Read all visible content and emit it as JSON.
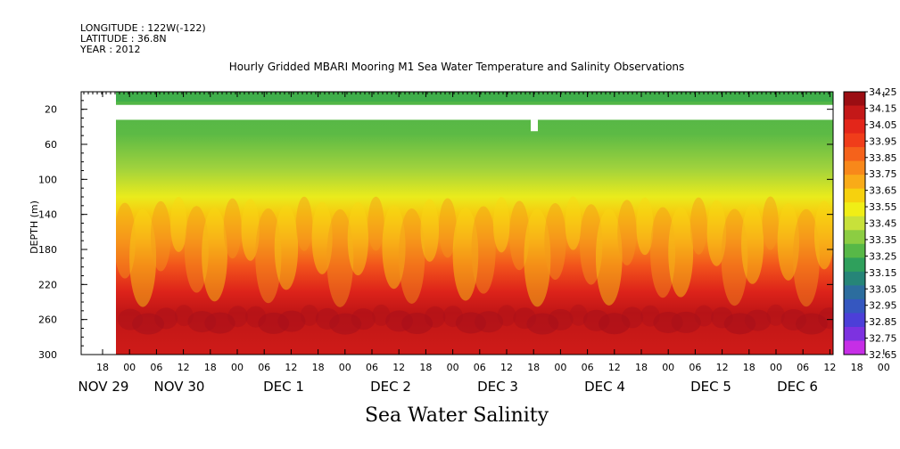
{
  "header": {
    "longitude": "LONGITUDE : 122W(-122)",
    "latitude": "LATITUDE : 36.8N",
    "year": "YEAR : 2012"
  },
  "chart_data": {
    "type": "heatmap",
    "title": "Hourly Gridded MBARI Mooring M1 Sea Water Temperature and Salinity Observations",
    "xlabel": "Sea Water Salinity",
    "ylabel": "DEPTH (m)",
    "y_ticks": [
      20,
      60,
      100,
      140,
      180,
      220,
      260,
      300
    ],
    "ylim": [
      300,
      0
    ],
    "x_hour_labels": [
      "18",
      "00",
      "06",
      "12",
      "18",
      "00",
      "06",
      "12",
      "18",
      "00",
      "06",
      "12",
      "18",
      "00",
      "06",
      "12",
      "18",
      "00",
      "06",
      "12",
      "18",
      "00",
      "06",
      "12",
      "18",
      "00",
      "06",
      "12",
      "18",
      "00",
      "06",
      "12"
    ],
    "x_date_labels": [
      "NOV 29",
      "NOV 30",
      "DEC 1",
      "DEC 2",
      "DEC 3",
      "DEC 4",
      "DEC 5",
      "DEC 6"
    ],
    "colorbar_levels": [
      "34.25",
      "34.15",
      "34.05",
      "33.95",
      "33.85",
      "33.75",
      "33.65",
      "33.55",
      "33.45",
      "33.35",
      "33.25",
      "33.15",
      "33.05",
      "32.95",
      "32.85",
      "32.75",
      "32.65"
    ],
    "colorbar_colors": [
      "#9b0d12",
      "#c41818",
      "#e3261a",
      "#f03d1a",
      "#f5621b",
      "#f8881a",
      "#f9ab18",
      "#f6d10e",
      "#f0ee16",
      "#c8e13a",
      "#8ccd42",
      "#57b847",
      "#2fa05c",
      "#268578",
      "#2c6d9e",
      "#3557c0",
      "#4c3fd8",
      "#7d32e0",
      "#c62ee6"
    ],
    "depth_profile": [
      {
        "depth": 10,
        "salinity": 33.3
      },
      {
        "depth": 60,
        "salinity": 33.3
      },
      {
        "depth": 100,
        "salinity": 33.45
      },
      {
        "depth": 140,
        "salinity": 33.7
      },
      {
        "depth": 180,
        "salinity": 33.95
      },
      {
        "depth": 220,
        "salinity": 34.1
      },
      {
        "depth": 260,
        "salinity": 34.2
      },
      {
        "depth": 300,
        "salinity": 34.15
      }
    ]
  }
}
